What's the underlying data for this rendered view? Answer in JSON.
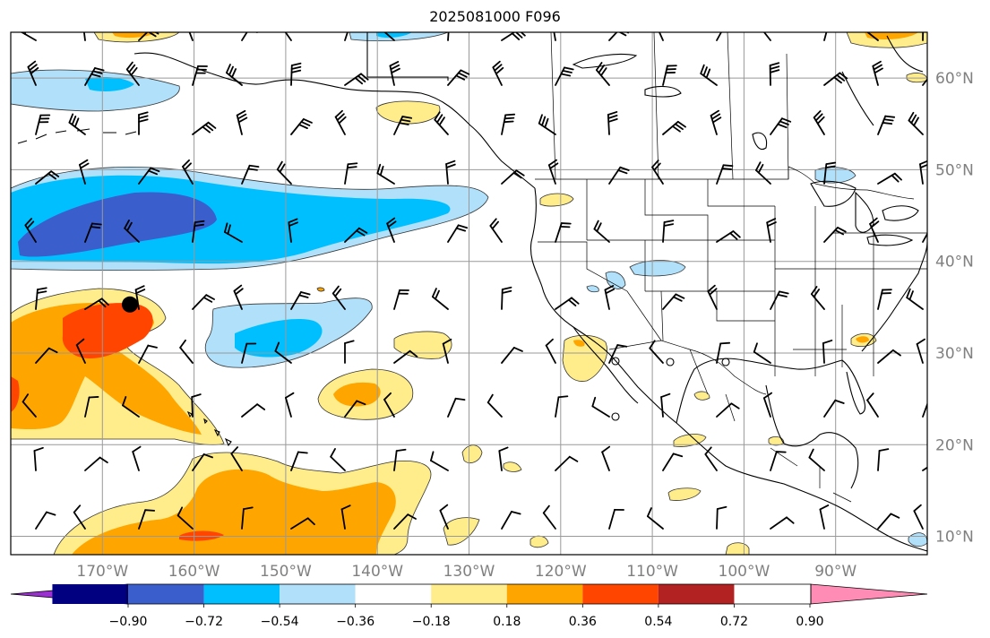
{
  "title": "2025081000 F096",
  "lon_ticks": [
    {
      "lon": -170,
      "label": "170°W"
    },
    {
      "lon": -160,
      "label": "160°W"
    },
    {
      "lon": -150,
      "label": "150°W"
    },
    {
      "lon": -140,
      "label": "140°W"
    },
    {
      "lon": -130,
      "label": "130°W"
    },
    {
      "lon": -120,
      "label": "120°W"
    },
    {
      "lon": -110,
      "label": "110°W"
    },
    {
      "lon": -100,
      "label": "100°W"
    },
    {
      "lon": -90,
      "label": "90°W"
    }
  ],
  "lat_ticks": [
    {
      "lat": 60,
      "label": "60°N"
    },
    {
      "lat": 50,
      "label": "50°N"
    },
    {
      "lat": 40,
      "label": "40°N"
    },
    {
      "lat": 30,
      "label": "30°N"
    },
    {
      "lat": 20,
      "label": "20°N"
    },
    {
      "lat": 10,
      "label": "10°N"
    }
  ],
  "extent": {
    "lon_min": -180,
    "lon_max": -80,
    "lat_min": 8,
    "lat_max": 65
  },
  "colorbar": {
    "colors": [
      "#9b30d0",
      "#000080",
      "#3a5fcd",
      "#00bfff",
      "#b0e0fa",
      "#ffffff",
      "#ffec8b",
      "#ffa500",
      "#ff4500",
      "#b22222",
      "#ff8cb4"
    ],
    "ticks": [
      "−0.90",
      "−0.72",
      "−0.54",
      "−0.36",
      "−0.18",
      "0.18",
      "0.36",
      "0.54",
      "0.72",
      "0.90"
    ]
  },
  "marker": {
    "lon": -167,
    "lat": 35.3
  }
}
